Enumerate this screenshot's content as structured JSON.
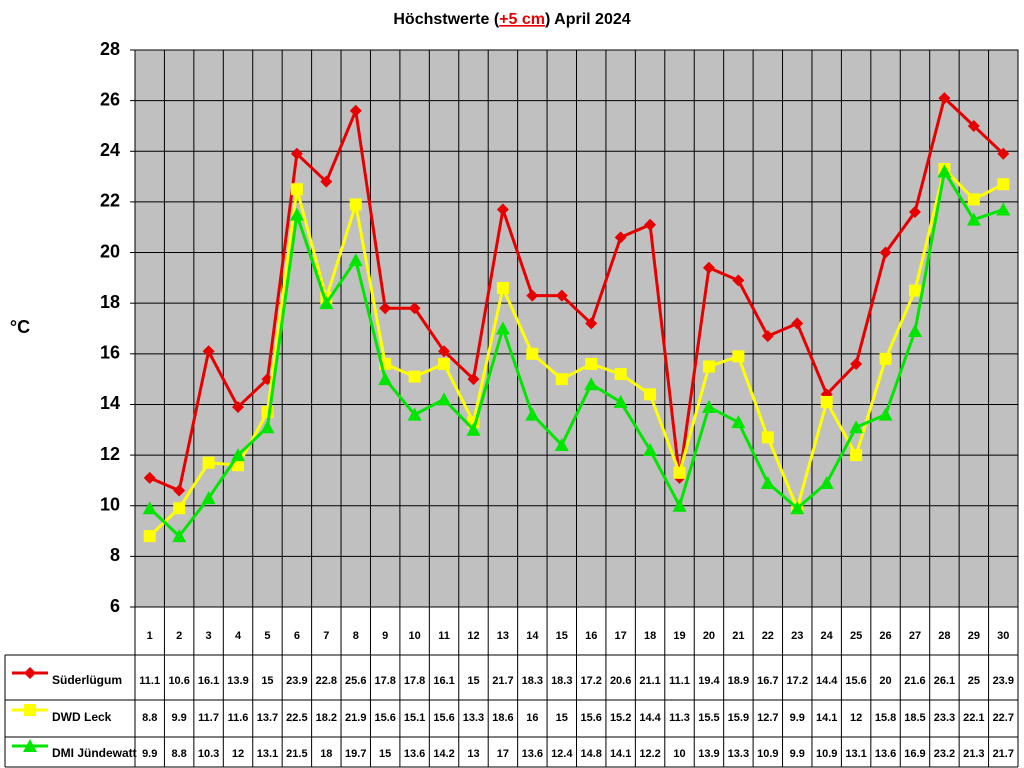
{
  "chart_data": {
    "type": "line",
    "title": [
      "Höchstwerte (",
      "+5 cm",
      ") April 2024"
    ],
    "y_label": "°C",
    "categories": [
      "1",
      "2",
      "3",
      "4",
      "5",
      "6",
      "7",
      "8",
      "9",
      "10",
      "11",
      "12",
      "13",
      "14",
      "15",
      "16",
      "17",
      "18",
      "19",
      "20",
      "21",
      "22",
      "23",
      "24",
      "25",
      "26",
      "27",
      "28",
      "29",
      "30"
    ],
    "series": [
      {
        "name": "Süderlügum",
        "color": "#e60000",
        "marker": "diamond",
        "values": [
          11.1,
          10.6,
          16.1,
          13.9,
          15,
          23.9,
          22.8,
          25.6,
          17.8,
          17.8,
          16.1,
          15,
          21.7,
          18.3,
          18.3,
          17.2,
          20.6,
          21.1,
          11.1,
          19.4,
          18.9,
          16.7,
          17.2,
          14.4,
          15.6,
          20,
          21.6,
          26.1,
          25,
          23.9
        ]
      },
      {
        "name": "DWD Leck",
        "color": "#ffff00",
        "marker": "square",
        "values": [
          8.8,
          9.9,
          11.7,
          11.6,
          13.7,
          22.5,
          18.2,
          21.9,
          15.6,
          15.1,
          15.6,
          13.3,
          18.6,
          16,
          15,
          15.6,
          15.2,
          14.4,
          11.3,
          15.5,
          15.9,
          12.7,
          9.9,
          14.1,
          12,
          15.8,
          18.5,
          23.3,
          22.1,
          22.7
        ]
      },
      {
        "name": "DMI Jündewatt",
        "color": "#00e600",
        "marker": "triangle",
        "values": [
          9.9,
          8.8,
          10.3,
          12,
          13.1,
          21.5,
          18,
          19.7,
          15,
          13.6,
          14.2,
          13,
          17,
          13.6,
          12.4,
          14.8,
          14.1,
          12.2,
          10,
          13.9,
          13.3,
          10.9,
          9.9,
          10.9,
          13.1,
          13.6,
          16.9,
          23.2,
          21.3,
          21.7
        ]
      }
    ],
    "ylim": [
      6,
      28
    ],
    "yticks": [
      6,
      8,
      10,
      12,
      14,
      16,
      18,
      20,
      22,
      24,
      26,
      28
    ],
    "grid": true,
    "plot_background": "#c0c0c0"
  }
}
